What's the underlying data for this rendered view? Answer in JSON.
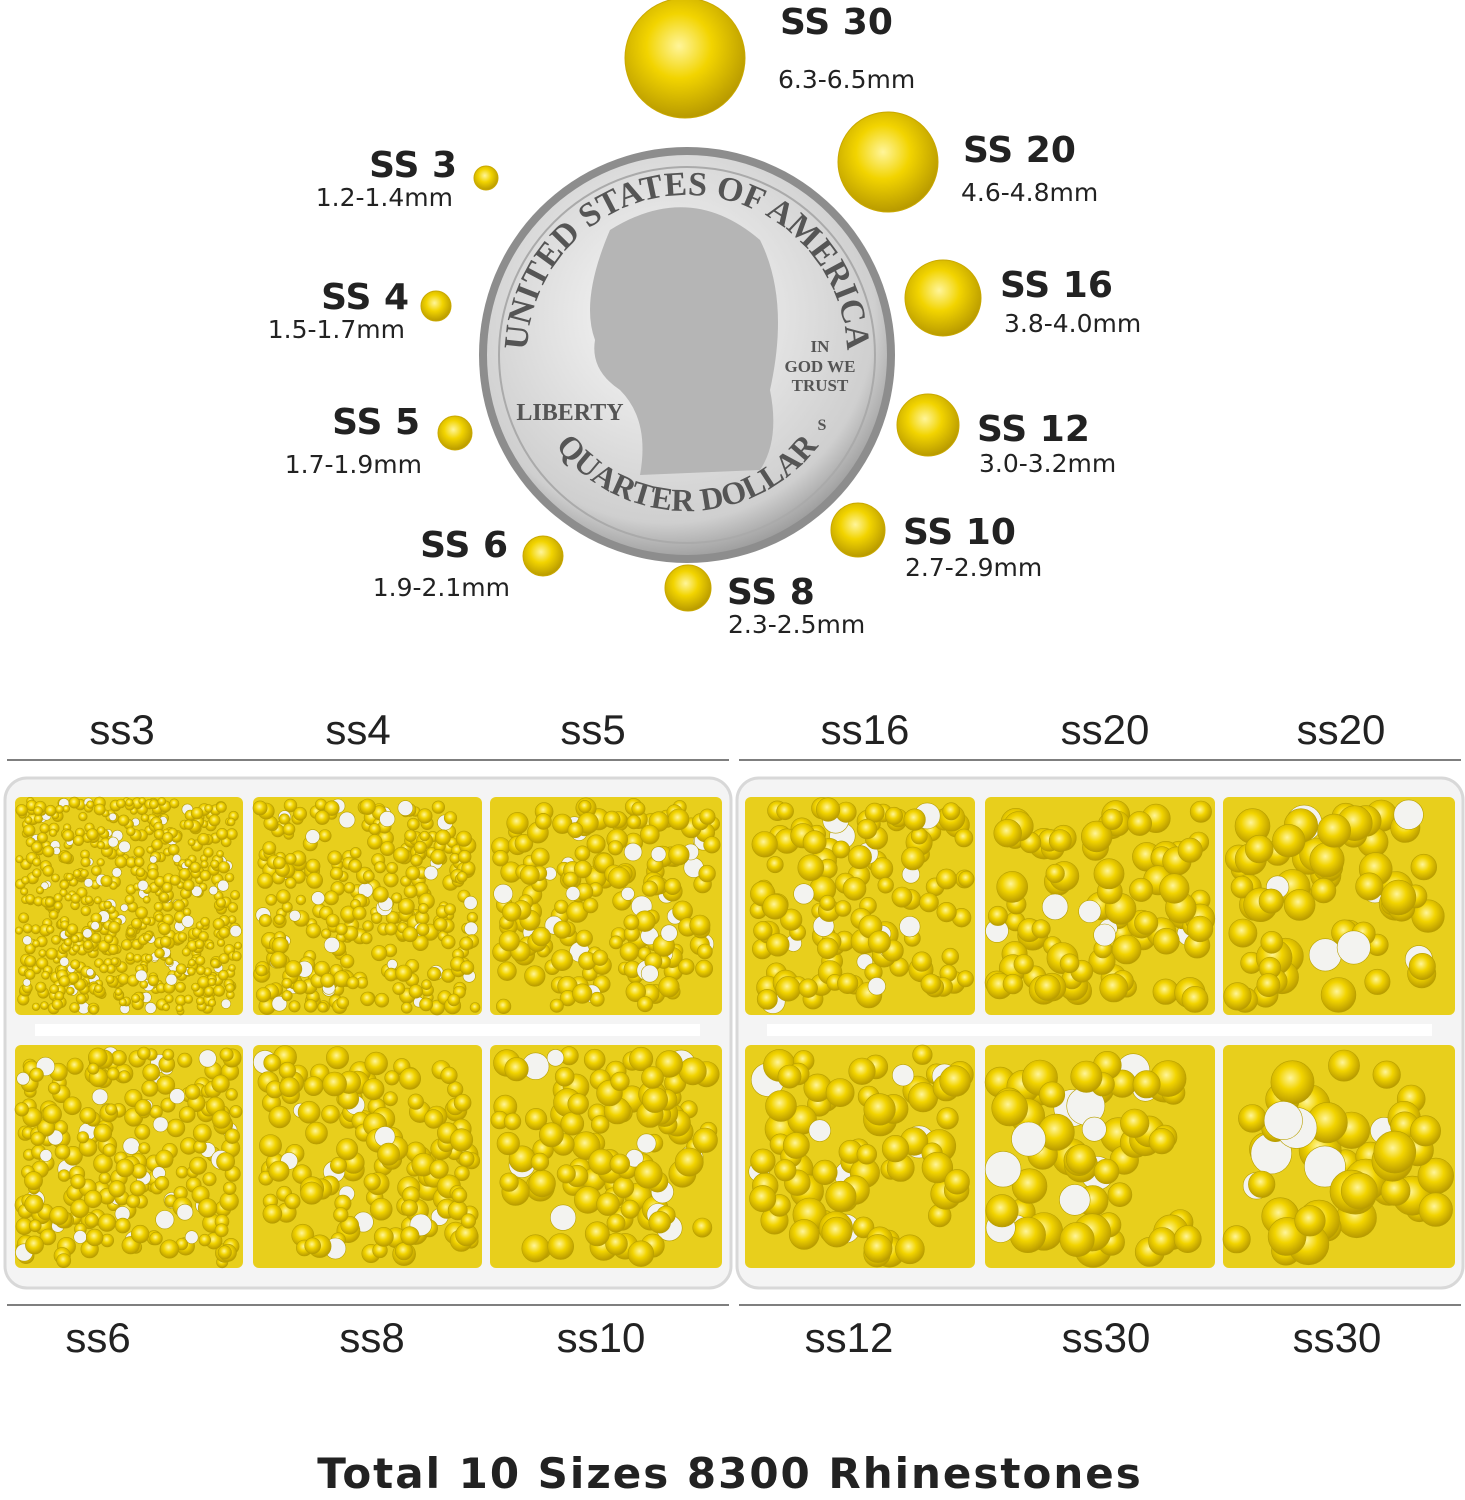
{
  "sizes": [
    {
      "name": "SS 30",
      "range": "6.3-6.5mm"
    },
    {
      "name": "SS 20",
      "range": "4.6-4.8mm"
    },
    {
      "name": "SS 16",
      "range": "3.8-4.0mm"
    },
    {
      "name": "SS 12",
      "range": "3.0-3.2mm"
    },
    {
      "name": "SS 10",
      "range": "2.7-2.9mm"
    },
    {
      "name": "SS 8",
      "range": "2.3-2.5mm"
    },
    {
      "name": "SS 6",
      "range": "1.9-2.1mm"
    },
    {
      "name": "SS 5",
      "range": "1.7-1.9mm"
    },
    {
      "name": "SS 4",
      "range": "1.5-1.7mm"
    },
    {
      "name": "SS 3",
      "range": "1.2-1.4mm"
    }
  ],
  "coin": {
    "top": "UNITED STATES OF AMERICA",
    "left": "LIBERTY",
    "motto": [
      "IN",
      "GOD WE",
      "TRUST"
    ],
    "mint": "S",
    "bottom": "QUARTER DOLLAR"
  },
  "box_left": {
    "top": [
      "ss3",
      "ss4",
      "ss5"
    ],
    "bottom": [
      "ss6",
      "ss8",
      "ss10"
    ]
  },
  "box_right": {
    "top": [
      "ss16",
      "ss20",
      "ss20"
    ],
    "bottom": [
      "ss12",
      "ss30",
      "ss30"
    ]
  },
  "footer": "Total 10 Sizes 8300 Rhinestones"
}
